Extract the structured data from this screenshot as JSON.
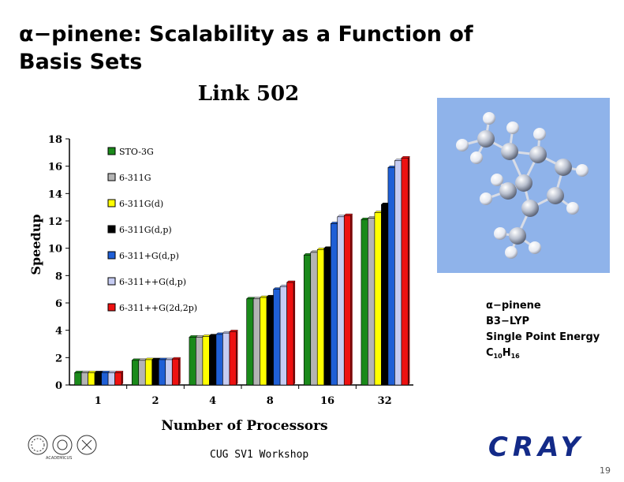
{
  "slide": {
    "title_greek": "α",
    "title_line1_rest": "−pinene: Scalability as a Function of",
    "title_line2": "Basis Sets",
    "footer": "CUG SV1 Workshop",
    "page_number": "19"
  },
  "caption": {
    "name_greek": "α",
    "name_rest": "−pinene",
    "method": "B3−LYP",
    "task": "Single Point Energy",
    "formula_c": "C",
    "formula_c_sub": "10",
    "formula_h": "H",
    "formula_h_sub": "16"
  },
  "logos": {
    "cray_text": "CRAY",
    "left_logo_caption": "ACADEMICUS"
  },
  "chart_data": {
    "type": "bar",
    "title": "Link 502",
    "xlabel": "Number of Processors",
    "ylabel": "Speedup",
    "ylim": [
      0,
      18
    ],
    "yticks": [
      "0",
      "2",
      "4",
      "6",
      "8",
      "10",
      "12",
      "14",
      "16",
      "18"
    ],
    "categories": [
      "1",
      "2",
      "4",
      "8",
      "16",
      "32"
    ],
    "legend_position": "inside-top-left",
    "series": [
      {
        "name": "STO-3G",
        "color": "#1a8a1a",
        "values": [
          0.9,
          1.8,
          3.5,
          6.3,
          9.5,
          12.1
        ]
      },
      {
        "name": "6-311G",
        "color": "#b4b4b4",
        "values": [
          0.9,
          1.8,
          3.5,
          6.3,
          9.7,
          12.2
        ]
      },
      {
        "name": "6-311G(d)",
        "color": "#ffff00",
        "values": [
          0.9,
          1.85,
          3.55,
          6.4,
          9.9,
          12.6
        ]
      },
      {
        "name": "6-311G(d,p)",
        "color": "#000000",
        "values": [
          0.9,
          1.85,
          3.6,
          6.45,
          10.0,
          13.2
        ]
      },
      {
        "name": "6-311+G(d,p)",
        "color": "#1f5fd6",
        "values": [
          0.9,
          1.85,
          3.7,
          7.0,
          11.8,
          15.9
        ]
      },
      {
        "name": "6-311++G(d,p)",
        "color": "#c6ccf2",
        "values": [
          0.9,
          1.85,
          3.8,
          7.2,
          12.3,
          16.4
        ]
      },
      {
        "name": "6-311++G(2d,2p)",
        "color": "#ee1111",
        "values": [
          0.9,
          1.9,
          3.9,
          7.5,
          12.4,
          16.6
        ]
      }
    ]
  }
}
